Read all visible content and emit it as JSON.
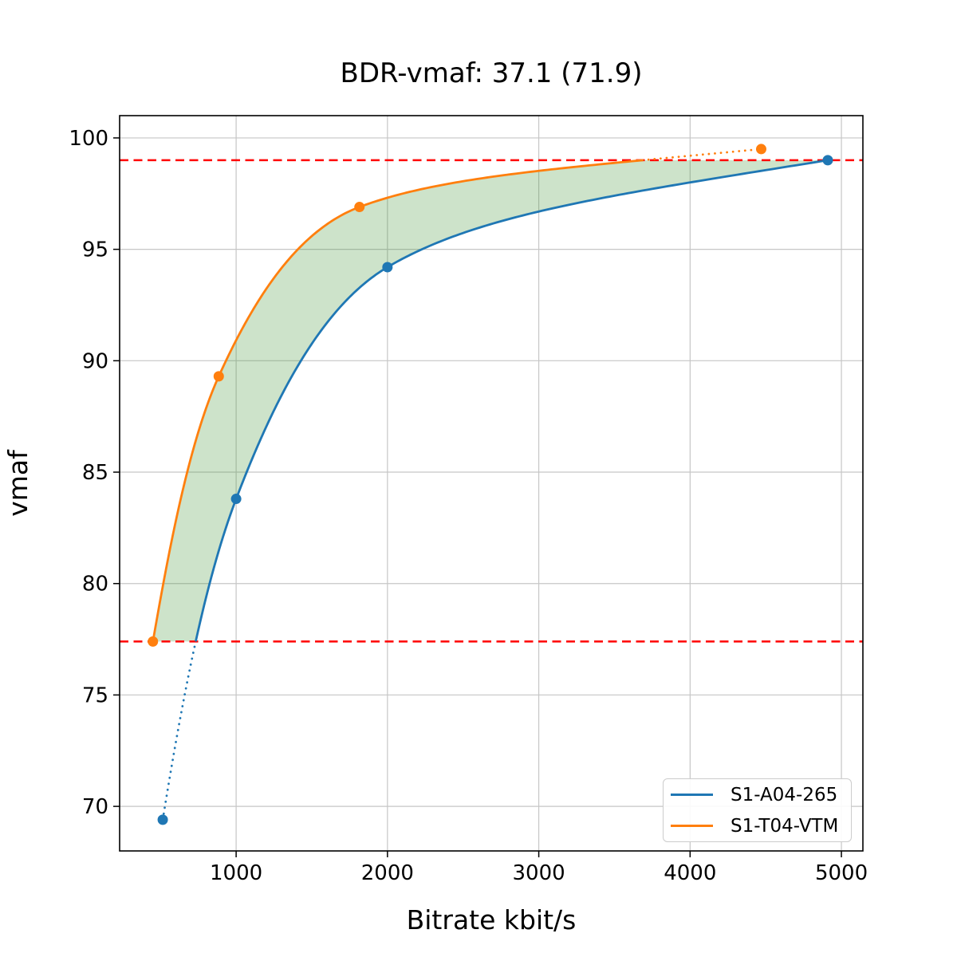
{
  "chart_data": {
    "type": "line",
    "title": "BDR-vmaf: 37.1 (71.9)",
    "xlabel": "Bitrate kbit/s",
    "ylabel": "vmaf",
    "xlim": [
      230,
      5142
    ],
    "ylim": [
      68,
      101
    ],
    "x_ticks": [
      1000,
      2000,
      3000,
      4000,
      5000
    ],
    "y_ticks": [
      70,
      75,
      80,
      85,
      90,
      95,
      100
    ],
    "grid": true,
    "grid_color": "#c6c6c6",
    "legend_position": "lower right",
    "interpolation": "monotone cubic in log-bitrate; dotted where outside overlap interval",
    "series": [
      {
        "name": "S1-A04-265",
        "color": "#1f77b4",
        "marker": "circle",
        "x": [
          515,
          1000,
          2000,
          4910
        ],
        "y": [
          69.4,
          83.8,
          94.2,
          99.0
        ]
      },
      {
        "name": "S1-T04-VTM",
        "color": "#ff7f0e",
        "marker": "circle",
        "x": [
          450,
          885,
          1815,
          4470
        ],
        "y": [
          77.4,
          89.3,
          96.9,
          99.5
        ]
      }
    ],
    "overlap_hlines": {
      "values": [
        99.0,
        77.4
      ],
      "color": "#ff0000",
      "style": "dashed"
    },
    "shaded_region": {
      "description": "area between the two rate-quality curves over vmaf 77.4 to 99.0",
      "color": "rgba(72,150,60,0.27)"
    }
  }
}
